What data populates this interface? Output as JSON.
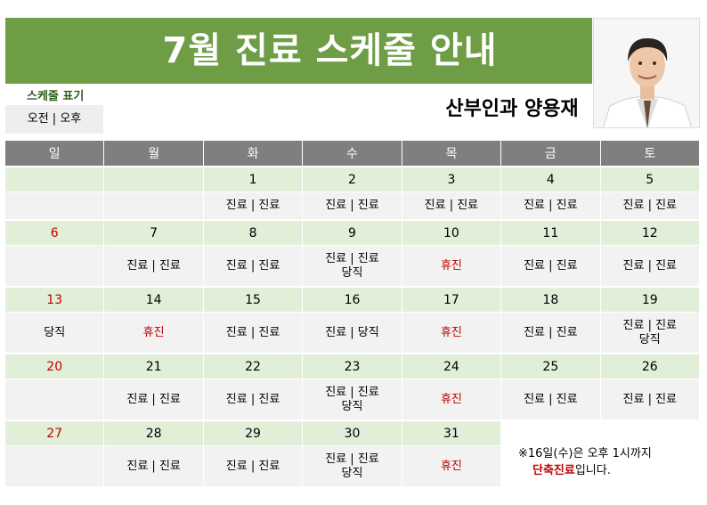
{
  "header": {
    "title": "7월 진료 스케줄 안내",
    "doctor": "산부인과 양용재"
  },
  "legend": {
    "title": "스케줄 표기",
    "text": "오전 | 오후"
  },
  "colors": {
    "accent": "#6e9d45",
    "header_gray": "#7f7f7f",
    "date_green": "#e1efd8",
    "cell_gray": "#f2f2f2",
    "holiday_red": "#c00000"
  },
  "calendar": {
    "weekdays": [
      "일",
      "월",
      "화",
      "수",
      "목",
      "금",
      "토"
    ],
    "weeks": [
      {
        "dates": [
          "",
          "",
          "1",
          "2",
          "3",
          "4",
          "5"
        ],
        "schedule": [
          "",
          "",
          "진료 | 진료",
          "진료 | 진료",
          "진료 | 진료",
          "진료 | 진료",
          "진료 | 진료"
        ]
      },
      {
        "dates": [
          "6",
          "7",
          "8",
          "9",
          "10",
          "11",
          "12"
        ],
        "schedule": [
          "",
          "진료 | 진료",
          "진료 | 진료",
          "진료 | 진료",
          "휴진",
          "진료 | 진료",
          "진료 | 진료"
        ],
        "duty": [
          "",
          "",
          "",
          "당직",
          "",
          "",
          ""
        ]
      },
      {
        "dates": [
          "13",
          "14",
          "15",
          "16",
          "17",
          "18",
          "19"
        ],
        "schedule": [
          "당직",
          "휴진",
          "진료 | 진료",
          "진료 | 당직",
          "휴진",
          "진료 | 진료",
          "진료 | 진료"
        ],
        "duty": [
          "",
          "",
          "",
          "",
          "",
          "",
          "당직"
        ]
      },
      {
        "dates": [
          "20",
          "21",
          "22",
          "23",
          "24",
          "25",
          "26"
        ],
        "schedule": [
          "",
          "진료 | 진료",
          "진료 | 진료",
          "진료 | 진료",
          "휴진",
          "진료 | 진료",
          "진료 | 진료"
        ],
        "duty": [
          "",
          "",
          "",
          "당직",
          "",
          "",
          ""
        ]
      },
      {
        "dates": [
          "27",
          "28",
          "29",
          "30",
          "31",
          "",
          ""
        ],
        "schedule": [
          "",
          "진료 | 진료",
          "진료 | 진료",
          "진료 | 진료",
          "휴진",
          "",
          ""
        ],
        "duty": [
          "",
          "",
          "",
          "당직",
          "",
          "",
          ""
        ]
      }
    ]
  },
  "note": {
    "line1": "※16일(수)은 오후 1시까지",
    "line2_bold": "단축진료",
    "line2_rest": "입니다."
  },
  "photo": {
    "icon": "doctor-portrait"
  }
}
